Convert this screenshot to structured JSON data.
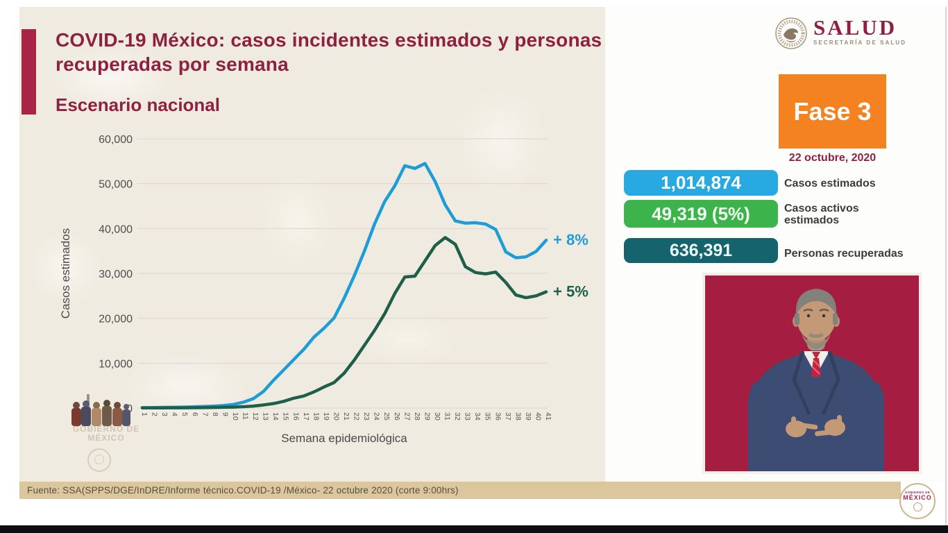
{
  "slide": {
    "title": "COVID-19 México: casos incidentes estimados y personas recuperadas por semana",
    "subtitle": "Escenario nacional"
  },
  "logo": {
    "word": "SALUD",
    "subtitle": "SECRETARÍA DE SALUD"
  },
  "phase": {
    "label": "Fase 3",
    "date": "22 octubre, 2020"
  },
  "stats": [
    {
      "value": "1,014,874",
      "label": "Casos estimados",
      "color": "#29a9e1"
    },
    {
      "value": "49,319 (5%)",
      "label": "Casos activos estimados",
      "color": "#3cb44b"
    },
    {
      "value": "636,391",
      "label": "Personas recuperadas",
      "color": "#15646d"
    }
  ],
  "chart_data": {
    "type": "line",
    "xlabel": "Semana epidemiológica",
    "ylabel": "Casos estimados",
    "ylim": [
      0,
      60000
    ],
    "yticks": [
      0,
      10000,
      20000,
      30000,
      40000,
      50000,
      60000
    ],
    "ytick_labels": [
      "0",
      "10,000",
      "20,000",
      "30,000",
      "40,000",
      "50,000",
      "60,000"
    ],
    "grid": true,
    "legend": false,
    "x": [
      1,
      2,
      3,
      4,
      5,
      6,
      7,
      8,
      9,
      10,
      11,
      12,
      13,
      14,
      15,
      16,
      17,
      18,
      19,
      20,
      21,
      22,
      23,
      24,
      25,
      26,
      27,
      28,
      29,
      30,
      31,
      32,
      33,
      34,
      35,
      36,
      37,
      38,
      39,
      40,
      41
    ],
    "series": [
      {
        "name": "Casos estimados",
        "color": "#1d9cd8",
        "annotation": "+ 8%",
        "values": [
          100,
          120,
          150,
          180,
          220,
          270,
          340,
          430,
          560,
          800,
          1300,
          2100,
          3700,
          6200,
          8500,
          10800,
          13100,
          15800,
          17800,
          20100,
          24500,
          29500,
          35000,
          41000,
          46000,
          49500,
          54000,
          53400,
          54500,
          50500,
          45300,
          41700,
          41200,
          41300,
          41000,
          39800,
          34800,
          33500,
          33700,
          34900,
          37400
        ]
      },
      {
        "name": "Personas recuperadas",
        "color": "#1e5f4b",
        "annotation": "+ 5%",
        "values": [
          30,
          30,
          40,
          50,
          60,
          80,
          100,
          130,
          170,
          220,
          300,
          450,
          700,
          1000,
          1500,
          2200,
          2700,
          3600,
          4700,
          5700,
          7800,
          10700,
          14000,
          17300,
          21000,
          25500,
          29200,
          29400,
          32800,
          36200,
          38000,
          36500,
          31500,
          30200,
          29900,
          30300,
          28000,
          25200,
          24600,
          25000,
          25900
        ]
      }
    ]
  },
  "watermark": {
    "text": "GOBIERNO DE MÉXICO"
  },
  "footer": {
    "source": "Fuente: SSA(SPPS/DGE/InDRE/Informe técnico.COVID-19 /México- 22 octubre 2020 (corte 9:00hrs)"
  },
  "corner_badge": {
    "line1": "GOBIERNO DE",
    "line2": "MÉXICO"
  },
  "colors": {
    "title_maroon": "#8e2140",
    "accent_bar": "#a82346",
    "slide_beige": "#f0ebe0",
    "phase_orange": "#f58220",
    "footer_tan": "#dcc69e",
    "video_background": "#a51e41",
    "line_blue": "#1d9cd8",
    "line_green": "#1e5f4b"
  }
}
